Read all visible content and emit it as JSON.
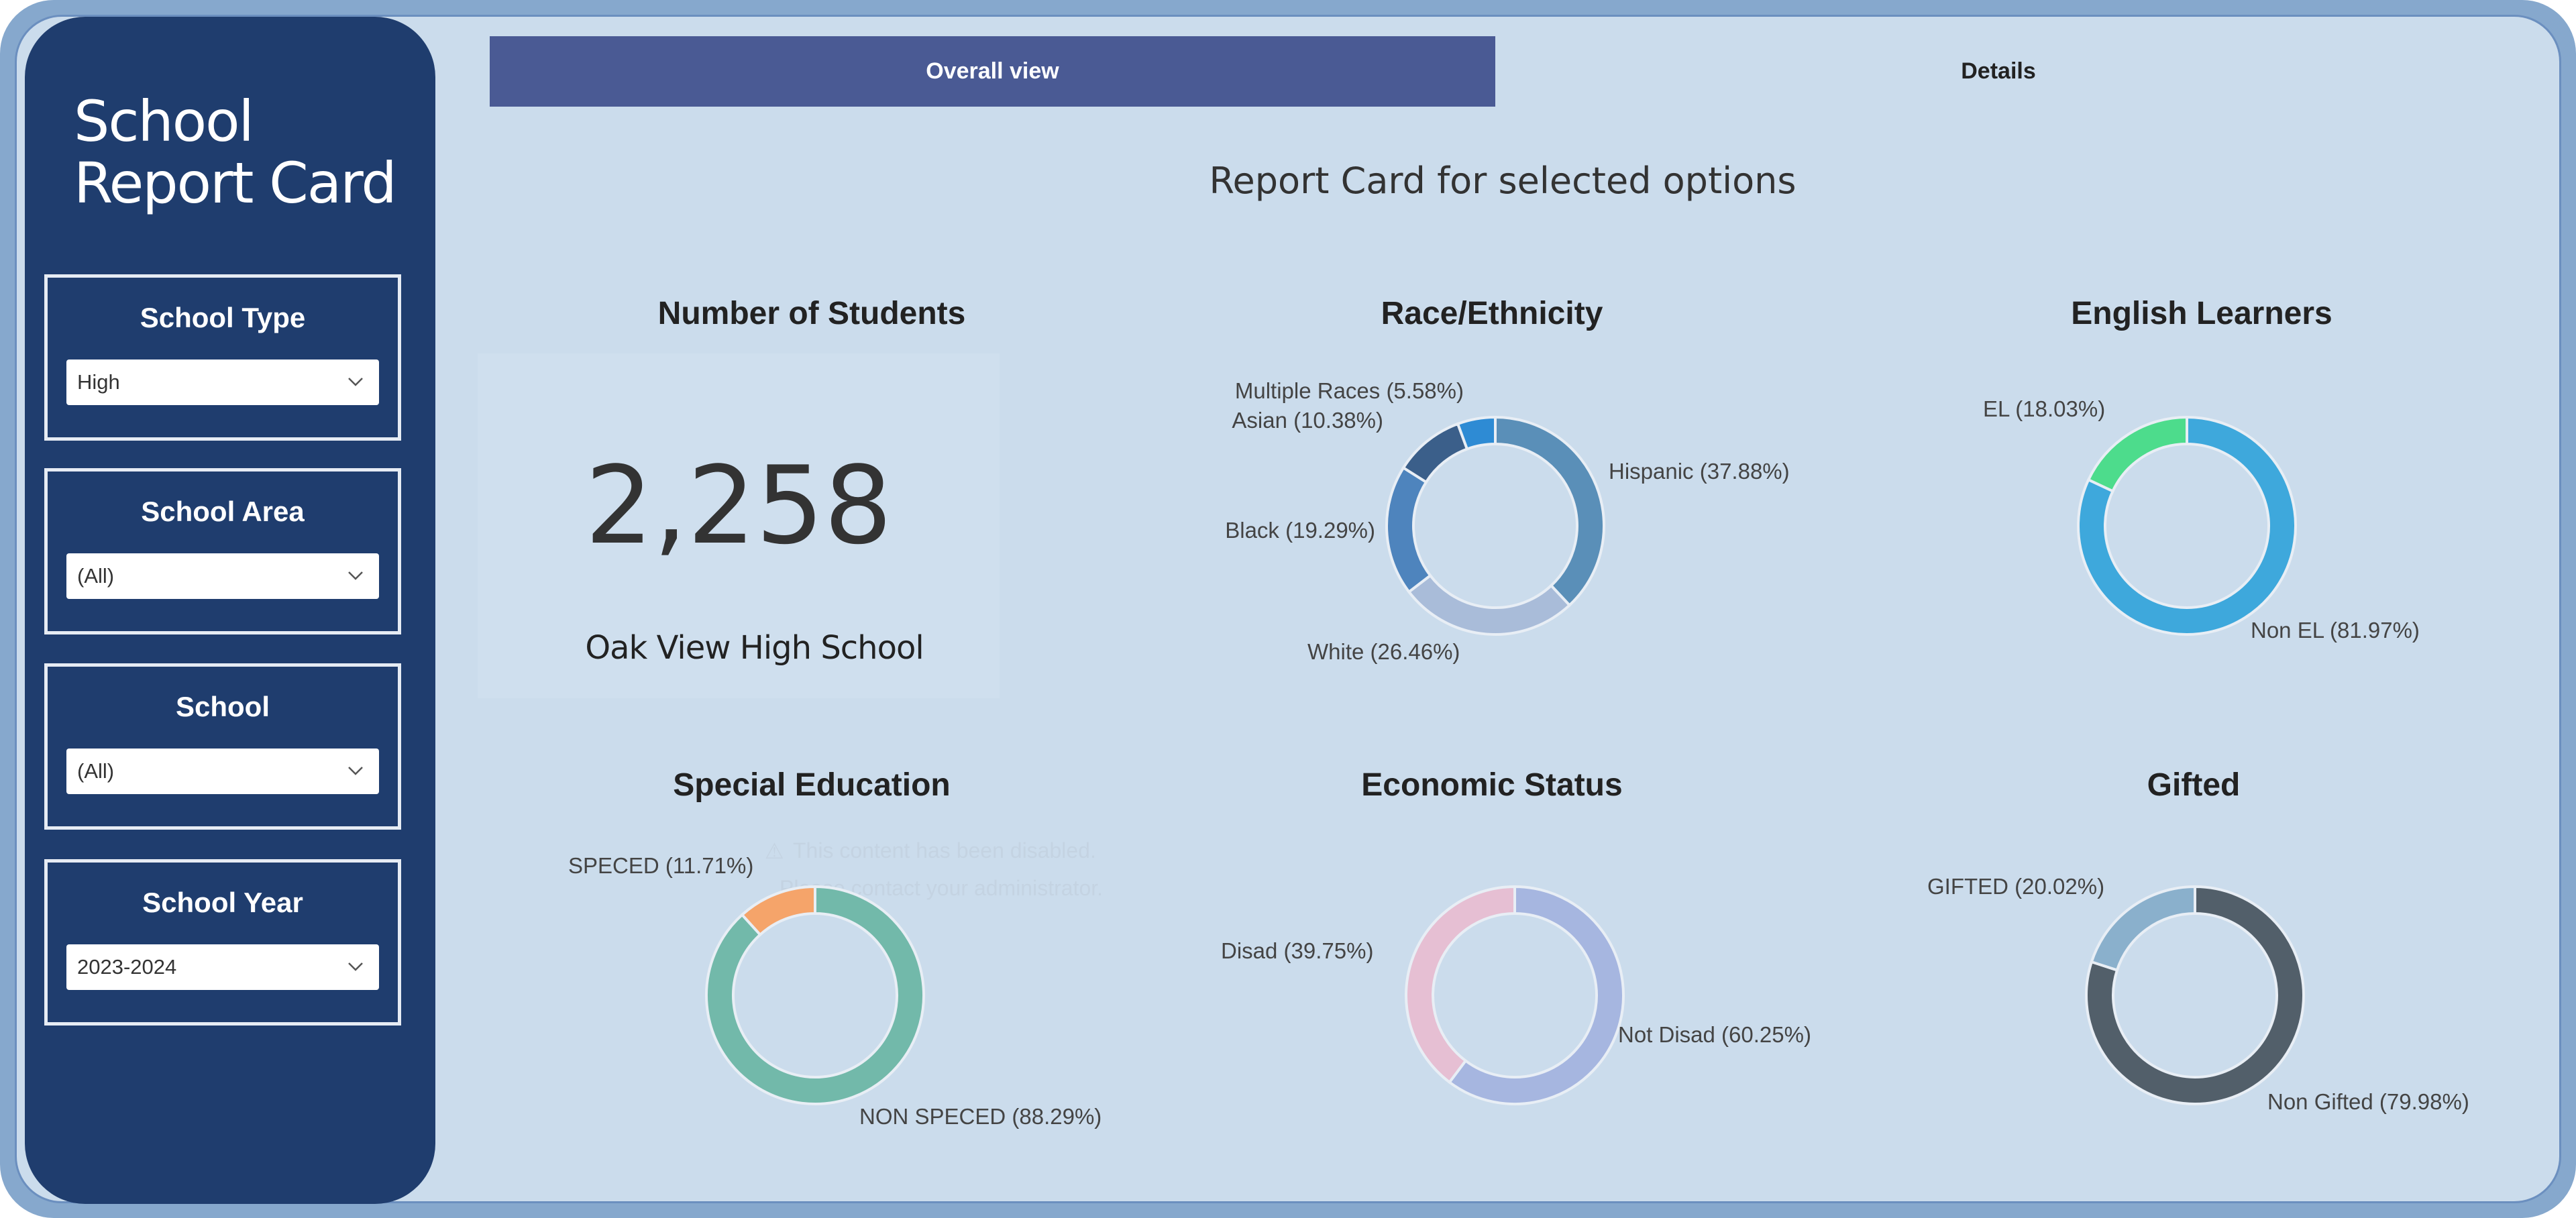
{
  "sidebar": {
    "title_line1": "School",
    "title_line2": "Report Card",
    "filters": [
      {
        "label": "School Type",
        "value": "High"
      },
      {
        "label": "School Area",
        "value": "(All)"
      },
      {
        "label": "School",
        "value": "(All)"
      },
      {
        "label": "School Year",
        "value": "2023-2024"
      }
    ]
  },
  "tabs": [
    {
      "label": "Overall view",
      "active": true
    },
    {
      "label": "Details",
      "active": false
    }
  ],
  "main": {
    "heading": "Report Card for selected options",
    "kpi": {
      "title": "Number of Students",
      "value": "2,258",
      "school": "Oak View High School"
    },
    "disabled_notice": {
      "line1": "This content has been disabled.",
      "line2": "Please contact your administrator."
    }
  },
  "chart_data": [
    {
      "type": "pie",
      "title": "Race/Ethnicity",
      "donut": true,
      "slices": [
        {
          "label": "Hispanic (37.88%)",
          "value": 37.88,
          "color": "#5a8fb8"
        },
        {
          "label": "White (26.46%)",
          "value": 26.46,
          "color": "#a9bcd9"
        },
        {
          "label": "Black (19.29%)",
          "value": 19.29,
          "color": "#4e84bd"
        },
        {
          "label": "Asian (10.38%)",
          "value": 10.38,
          "color": "#3b5f8a"
        },
        {
          "label": "Multiple Races (5.58%)",
          "value": 5.58,
          "color": "#2e8bd4"
        }
      ]
    },
    {
      "type": "pie",
      "title": "English Learners",
      "donut": true,
      "slices": [
        {
          "label": "Non EL (81.97%)",
          "value": 81.97,
          "color": "#3ea8dc"
        },
        {
          "label": "EL (18.03%)",
          "value": 18.03,
          "color": "#4ddc8c"
        }
      ]
    },
    {
      "type": "pie",
      "title": "Special Education",
      "donut": true,
      "slices": [
        {
          "label": "NON SPECED (88.29%)",
          "value": 88.29,
          "color": "#72b9aa"
        },
        {
          "label": "SPECED (11.71%)",
          "value": 11.71,
          "color": "#f5a46a"
        }
      ]
    },
    {
      "type": "pie",
      "title": "Economic Status",
      "donut": true,
      "slices": [
        {
          "label": "Not Disad (60.25%)",
          "value": 60.25,
          "color": "#a6b6e0"
        },
        {
          "label": "Disad (39.75%)",
          "value": 39.75,
          "color": "#e6bfd3"
        }
      ]
    },
    {
      "type": "pie",
      "title": "Gifted",
      "donut": true,
      "slices": [
        {
          "label": "Non Gifted (79.98%)",
          "value": 79.98,
          "color": "#525f6a"
        },
        {
          "label": "GIFTED (20.02%)",
          "value": 20.02,
          "color": "#8ab0cc"
        }
      ]
    }
  ]
}
